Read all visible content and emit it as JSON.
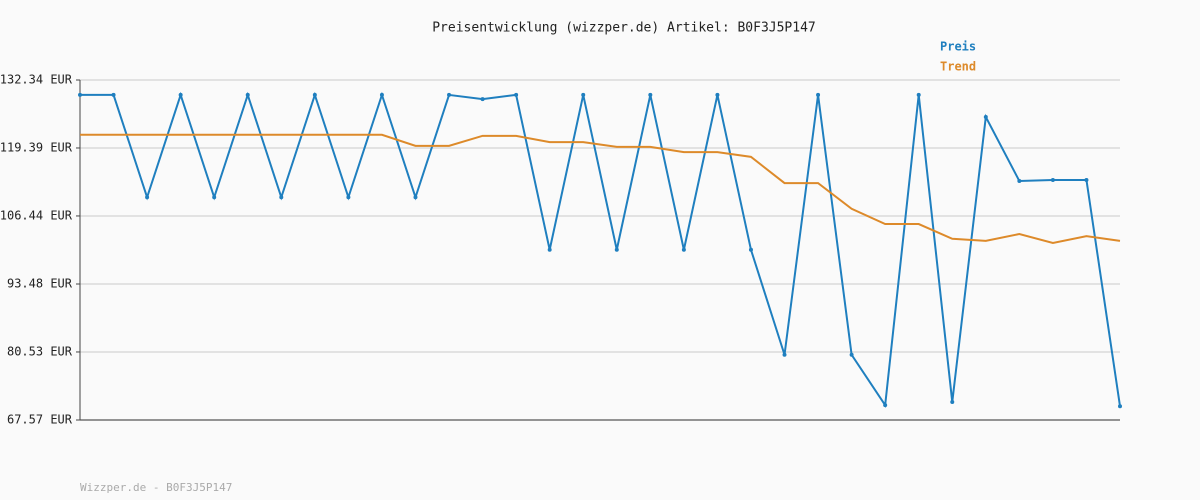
{
  "chart_data": {
    "type": "line",
    "title": "Preisentwicklung (wizzper.de) Artikel: B0F3J5P147",
    "footer": "Wizzper.de - B0F3J5P147",
    "series": [
      {
        "name": "Preis",
        "color": "#1f7fbf",
        "markers": true,
        "values": [
          129.5,
          129.5,
          110,
          129.5,
          110,
          129.5,
          110,
          129.5,
          110,
          129.5,
          110,
          129.5,
          128.7,
          129.5,
          100,
          129.5,
          100,
          129.5,
          100,
          129.5,
          100,
          80,
          129.5,
          80,
          70.4,
          129.5,
          71,
          125.3,
          113.1,
          113.3,
          113.3,
          70.2
        ]
      },
      {
        "name": "Trend",
        "color": "#dd8a2a",
        "markers": false,
        "values": [
          121.9,
          121.9,
          121.9,
          121.9,
          121.9,
          121.9,
          121.9,
          121.9,
          121.9,
          121.9,
          119.8,
          119.8,
          121.7,
          121.7,
          120.5,
          120.5,
          119.6,
          119.6,
          118.6,
          118.6,
          117.7,
          112.7,
          112.7,
          107.8,
          104.9,
          104.9,
          102.1,
          101.7,
          103,
          101.3,
          102.6,
          101.7
        ]
      }
    ],
    "ylim": [
      67.57,
      132.34
    ],
    "yticks": [
      {
        "value": 67.57,
        "label": "67.57 EUR"
      },
      {
        "value": 80.53,
        "label": "80.53 EUR"
      },
      {
        "value": 93.48,
        "label": "93.48 EUR"
      },
      {
        "value": 106.44,
        "label": "106.44 EUR"
      },
      {
        "value": 119.39,
        "label": "119.39 EUR"
      },
      {
        "value": 132.34,
        "label": "132.34 EUR"
      }
    ],
    "grid": true,
    "legend": "top-right"
  }
}
